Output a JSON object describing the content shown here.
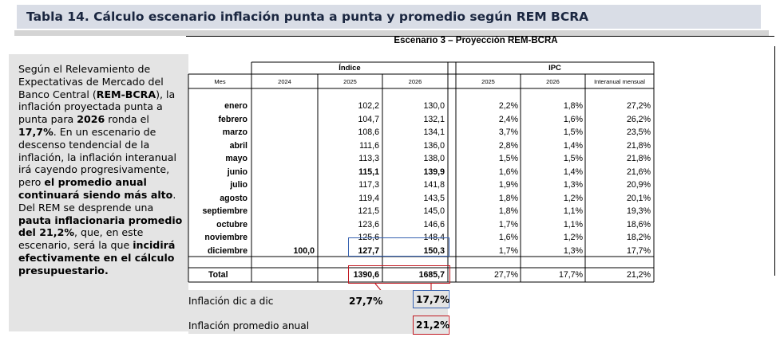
{
  "title": "Tabla 14. Cálculo escenario inflación punta a punta y promedio según REM BCRA",
  "scenario_title": "Escenario 3 – Proyección REM-BCRA",
  "paragraph": {
    "p1": "Según el Relevamiento de Expectativas de Mercado del Banco Central (",
    "b1": "REM-BCRA",
    "p2": "), la inflación proyectada punta a punta para ",
    "b2": "2026",
    "p3": " ronda el ",
    "b3": "17,7%",
    "p4": ". En un escenario de descenso tendencial de la inflación, la inflación interanual irá cayendo progresivamente, pero ",
    "b4": "el promedio anual continuará siendo más alto",
    "p5": ". Del REM se desprende una ",
    "b5": "pauta inflacionaria promedio del 21,2%",
    "p6": ", que, en este escenario, será la que ",
    "b6": "incidirá efectivamente en el cálculo presupuestario."
  },
  "table": {
    "group_indice": "Índice",
    "group_ipc": "IPC",
    "headers": [
      "Mes",
      "2024",
      "2025",
      "2026",
      "2025",
      "2026",
      "Interanual mensual"
    ],
    "rows": [
      {
        "mes": "enero",
        "i2024": "",
        "i2025": "102,2",
        "i2026": "130,0",
        "ipc2025": "2,2%",
        "ipc2026": "1,8%",
        "interanual": "27,2%"
      },
      {
        "mes": "febrero",
        "i2024": "",
        "i2025": "104,7",
        "i2026": "132,1",
        "ipc2025": "2,4%",
        "ipc2026": "1,6%",
        "interanual": "26,2%"
      },
      {
        "mes": "marzo",
        "i2024": "",
        "i2025": "108,6",
        "i2026": "134,1",
        "ipc2025": "3,7%",
        "ipc2026": "1,5%",
        "interanual": "23,5%"
      },
      {
        "mes": "abril",
        "i2024": "",
        "i2025": "111,6",
        "i2026": "136,0",
        "ipc2025": "2,8%",
        "ipc2026": "1,4%",
        "interanual": "21,8%"
      },
      {
        "mes": "mayo",
        "i2024": "",
        "i2025": "113,3",
        "i2026": "138,0",
        "ipc2025": "1,5%",
        "ipc2026": "1,5%",
        "interanual": "21,8%"
      },
      {
        "mes": "junio",
        "i2024": "",
        "i2025": "115,1",
        "i2026": "139,9",
        "ipc2025": "1,6%",
        "ipc2026": "1,4%",
        "interanual": "21,6%"
      },
      {
        "mes": "julio",
        "i2024": "",
        "i2025": "117,3",
        "i2026": "141,8",
        "ipc2025": "1,9%",
        "ipc2026": "1,3%",
        "interanual": "20,9%"
      },
      {
        "mes": "agosto",
        "i2024": "",
        "i2025": "119,4",
        "i2026": "143,5",
        "ipc2025": "1,8%",
        "ipc2026": "1,2%",
        "interanual": "20,1%"
      },
      {
        "mes": "septiembre",
        "i2024": "",
        "i2025": "121,5",
        "i2026": "145,0",
        "ipc2025": "1,8%",
        "ipc2026": "1,1%",
        "interanual": "19,3%"
      },
      {
        "mes": "octubre",
        "i2024": "",
        "i2025": "123,6",
        "i2026": "146,6",
        "ipc2025": "1,7%",
        "ipc2026": "1,1%",
        "interanual": "18,6%"
      },
      {
        "mes": "noviembre",
        "i2024": "",
        "i2025": "125,6",
        "i2026": "148,4",
        "ipc2025": "1,6%",
        "ipc2026": "1,2%",
        "interanual": "18,2%"
      },
      {
        "mes": "diciembre",
        "i2024": "100,0",
        "i2025": "127,7",
        "i2026": "150,3",
        "ipc2025": "1,7%",
        "ipc2026": "1,3%",
        "interanual": "17,7%"
      }
    ],
    "total": {
      "mes": "Total",
      "i2025": "1390,6",
      "i2026": "1685,7",
      "ipc2025": "27,7%",
      "ipc2026": "17,7%",
      "interanual": "21,2%"
    }
  },
  "summary": {
    "dic_label": "Inflación dic a dic",
    "dic_2025": "27,7%",
    "dic_2026": "17,7%",
    "prom_label": "Inflación promedio anual",
    "prom_2026": "21,2%"
  },
  "colors": {
    "highlight_blue": "#3561b0",
    "highlight_red": "#c01720"
  }
}
